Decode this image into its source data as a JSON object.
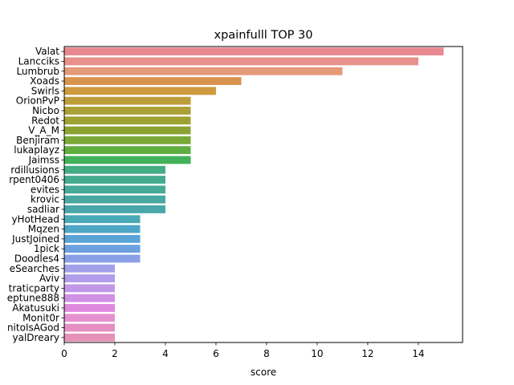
{
  "chart_data": {
    "type": "bar",
    "orientation": "horizontal",
    "title": "xpainfulll TOP 30",
    "xlabel": "score",
    "ylabel": "",
    "xlim": [
      0,
      15.75
    ],
    "xticks": [
      0,
      2,
      4,
      6,
      8,
      10,
      12,
      14
    ],
    "grid": false,
    "categories": [
      "Valat",
      "Lancciks",
      "Lumbrub",
      "Xoads",
      "Swirls",
      "OrionPvP",
      "Nicbo",
      "Redot",
      "V_A_M",
      "Benjiram",
      "lukaplayz",
      "Jaimss",
      "rdillusions",
      "rpent0406",
      "evites",
      "krovic",
      "sadliar",
      "yHotHead",
      "Mqzen",
      "JustJoined",
      "1pick",
      "Doodles4",
      "eSearches",
      "Aviv",
      "traticparty",
      "eptune888",
      "Akatusuki",
      "Monit0r",
      "nitoIsAGod",
      "yalDreary"
    ],
    "values": [
      15,
      14,
      11,
      7,
      6,
      5,
      5,
      5,
      5,
      5,
      5,
      5,
      4,
      4,
      4,
      4,
      4,
      3,
      3,
      3,
      3,
      3,
      2,
      2,
      2,
      2,
      2,
      2,
      2,
      2
    ],
    "colors": [
      "#e8888f",
      "#e8908a",
      "#e59a7a",
      "#d8944d",
      "#cf9a3e",
      "#bc9d3a",
      "#aba035",
      "#9fa232",
      "#8ca333",
      "#7aa836",
      "#5fae3f",
      "#42b15a",
      "#44ad83",
      "#45ab90",
      "#47a998",
      "#48a8a0",
      "#49a6aa",
      "#4aa9b6",
      "#4fa6c6",
      "#5aa3d6",
      "#6ca0de",
      "#8aa0e6",
      "#a3a0ea",
      "#b09cea",
      "#c197e8",
      "#d090e4",
      "#e189de",
      "#e790cf",
      "#e68fc2",
      "#e691b6"
    ]
  }
}
